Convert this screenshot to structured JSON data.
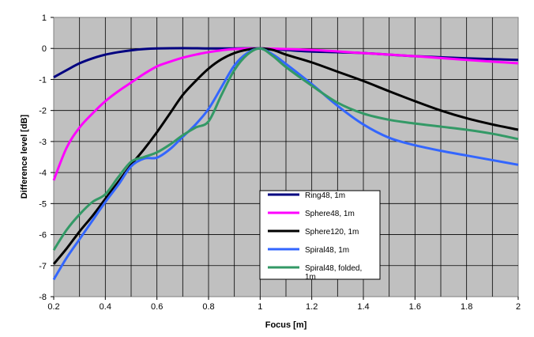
{
  "chart_data": {
    "type": "line",
    "title": "",
    "xlabel": "Focus  [m]",
    "ylabel": "Difference  level [dB]",
    "xlim": [
      0.2,
      2
    ],
    "ylim": [
      -8,
      1
    ],
    "xticks": [
      0.2,
      0.4,
      0.6,
      0.8,
      1,
      1.2,
      1.4,
      1.6,
      1.8,
      2
    ],
    "xtick_labels": [
      "0.2",
      "0.4",
      "0.6",
      "0.8",
      "1",
      "1.2",
      "1.4",
      "1.6",
      "1.8",
      "2"
    ],
    "yticks": [
      1,
      0,
      -1,
      -2,
      -3,
      -4,
      -5,
      -6,
      -7,
      -8
    ],
    "ytick_labels": [
      "1",
      "0",
      "-1",
      "-2",
      "-3",
      "-4",
      "-5",
      "-6",
      "-7",
      "-8"
    ],
    "xgrid_step": 0.1,
    "grid": true,
    "plot_background": "#c0c0c0",
    "legend_position": "center-bottom",
    "series": [
      {
        "name": "Ring48, 1m",
        "color": "#000080",
        "points": [
          [
            0.2,
            -0.93
          ],
          [
            0.25,
            -0.7
          ],
          [
            0.3,
            -0.48
          ],
          [
            0.35,
            -0.32
          ],
          [
            0.4,
            -0.2
          ],
          [
            0.45,
            -0.12
          ],
          [
            0.5,
            -0.06
          ],
          [
            0.55,
            -0.02
          ],
          [
            0.6,
            0.0
          ],
          [
            0.7,
            0.01
          ],
          [
            0.8,
            0.0
          ],
          [
            0.9,
            0.0
          ],
          [
            1.0,
            0.0
          ],
          [
            1.1,
            -0.05
          ],
          [
            1.2,
            -0.1
          ],
          [
            1.4,
            -0.15
          ],
          [
            1.6,
            -0.25
          ],
          [
            1.8,
            -0.32
          ],
          [
            2.0,
            -0.37
          ]
        ]
      },
      {
        "name": "Sphere48, 1m",
        "color": "#ff00ff",
        "points": [
          [
            0.2,
            -4.25
          ],
          [
            0.25,
            -3.2
          ],
          [
            0.3,
            -2.55
          ],
          [
            0.35,
            -2.1
          ],
          [
            0.4,
            -1.7
          ],
          [
            0.45,
            -1.38
          ],
          [
            0.5,
            -1.1
          ],
          [
            0.55,
            -0.82
          ],
          [
            0.6,
            -0.58
          ],
          [
            0.65,
            -0.43
          ],
          [
            0.7,
            -0.3
          ],
          [
            0.75,
            -0.2
          ],
          [
            0.8,
            -0.12
          ],
          [
            0.85,
            -0.06
          ],
          [
            0.9,
            -0.02
          ],
          [
            1.0,
            0.0
          ],
          [
            1.2,
            -0.05
          ],
          [
            1.4,
            -0.15
          ],
          [
            1.6,
            -0.25
          ],
          [
            1.8,
            -0.37
          ],
          [
            2.0,
            -0.48
          ]
        ]
      },
      {
        "name": "Sphere120, 1m",
        "color": "#000000",
        "points": [
          [
            0.2,
            -6.95
          ],
          [
            0.25,
            -6.45
          ],
          [
            0.3,
            -5.9
          ],
          [
            0.35,
            -5.4
          ],
          [
            0.4,
            -4.85
          ],
          [
            0.45,
            -4.3
          ],
          [
            0.5,
            -3.75
          ],
          [
            0.55,
            -3.25
          ],
          [
            0.6,
            -2.7
          ],
          [
            0.65,
            -2.1
          ],
          [
            0.7,
            -1.5
          ],
          [
            0.75,
            -1.05
          ],
          [
            0.8,
            -0.65
          ],
          [
            0.85,
            -0.35
          ],
          [
            0.9,
            -0.15
          ],
          [
            0.95,
            -0.04
          ],
          [
            1.0,
            0.0
          ],
          [
            1.05,
            -0.05
          ],
          [
            1.1,
            -0.2
          ],
          [
            1.2,
            -0.45
          ],
          [
            1.3,
            -0.75
          ],
          [
            1.4,
            -1.05
          ],
          [
            1.5,
            -1.38
          ],
          [
            1.6,
            -1.7
          ],
          [
            1.7,
            -2.0
          ],
          [
            1.8,
            -2.25
          ],
          [
            1.9,
            -2.45
          ],
          [
            2.0,
            -2.62
          ]
        ]
      },
      {
        "name": "Spiral48, 1m",
        "color": "#3366ff",
        "points": [
          [
            0.2,
            -7.45
          ],
          [
            0.25,
            -6.75
          ],
          [
            0.3,
            -6.15
          ],
          [
            0.35,
            -5.55
          ],
          [
            0.4,
            -4.95
          ],
          [
            0.45,
            -4.4
          ],
          [
            0.5,
            -3.8
          ],
          [
            0.55,
            -3.55
          ],
          [
            0.6,
            -3.52
          ],
          [
            0.65,
            -3.25
          ],
          [
            0.7,
            -2.85
          ],
          [
            0.75,
            -2.45
          ],
          [
            0.8,
            -1.95
          ],
          [
            0.85,
            -1.25
          ],
          [
            0.9,
            -0.55
          ],
          [
            0.95,
            -0.15
          ],
          [
            1.0,
            0.0
          ],
          [
            1.05,
            -0.2
          ],
          [
            1.1,
            -0.5
          ],
          [
            1.2,
            -1.15
          ],
          [
            1.3,
            -1.85
          ],
          [
            1.4,
            -2.45
          ],
          [
            1.5,
            -2.88
          ],
          [
            1.6,
            -3.12
          ],
          [
            1.7,
            -3.3
          ],
          [
            1.8,
            -3.45
          ],
          [
            1.9,
            -3.6
          ],
          [
            2.0,
            -3.75
          ]
        ]
      },
      {
        "name": "Spiral48, folded, 1m",
        "color": "#339966",
        "points": [
          [
            0.2,
            -6.5
          ],
          [
            0.25,
            -5.85
          ],
          [
            0.3,
            -5.35
          ],
          [
            0.35,
            -4.95
          ],
          [
            0.4,
            -4.7
          ],
          [
            0.45,
            -4.15
          ],
          [
            0.5,
            -3.65
          ],
          [
            0.55,
            -3.5
          ],
          [
            0.6,
            -3.35
          ],
          [
            0.65,
            -3.1
          ],
          [
            0.7,
            -2.8
          ],
          [
            0.75,
            -2.55
          ],
          [
            0.8,
            -2.35
          ],
          [
            0.85,
            -1.5
          ],
          [
            0.9,
            -0.7
          ],
          [
            0.95,
            -0.2
          ],
          [
            1.0,
            0.0
          ],
          [
            1.05,
            -0.25
          ],
          [
            1.1,
            -0.6
          ],
          [
            1.2,
            -1.2
          ],
          [
            1.3,
            -1.75
          ],
          [
            1.4,
            -2.1
          ],
          [
            1.5,
            -2.3
          ],
          [
            1.6,
            -2.42
          ],
          [
            1.7,
            -2.52
          ],
          [
            1.8,
            -2.62
          ],
          [
            1.9,
            -2.75
          ],
          [
            2.0,
            -2.92
          ]
        ]
      }
    ]
  }
}
